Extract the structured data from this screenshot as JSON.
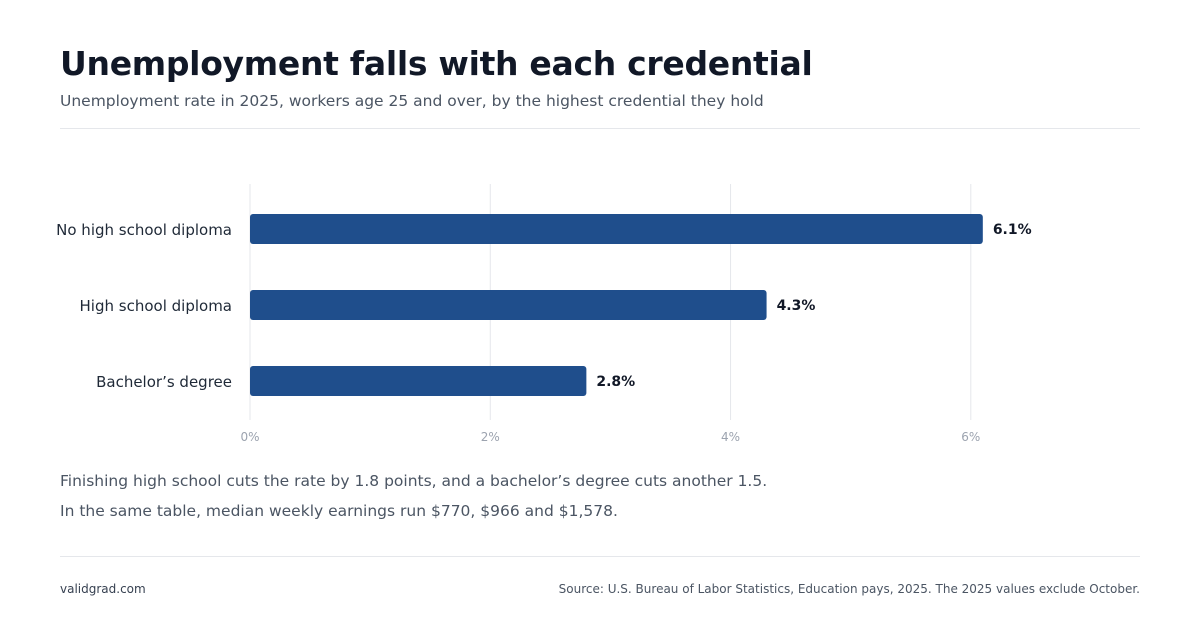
{
  "header": {
    "title": "Unemployment falls with each credential",
    "subtitle": "Unemployment rate in 2025, workers age 25 and over, by the highest credential they hold"
  },
  "chart_data": {
    "type": "bar",
    "orientation": "horizontal",
    "categories": [
      "No high school diploma",
      "High school diploma",
      "Bachelor’s degree"
    ],
    "values": [
      6.1,
      4.3,
      2.8
    ],
    "value_labels": [
      "6.1%",
      "4.3%",
      "2.8%"
    ],
    "x_ticks": [
      0,
      2,
      4,
      6
    ],
    "x_tick_labels": [
      "0%",
      "2%",
      "4%",
      "6%"
    ],
    "xlim": [
      0,
      7.5
    ],
    "grid": "vertical",
    "bar_color": "#1f4e8c"
  },
  "notes": [
    "Finishing high school cuts the rate by 1.8 points, and a bachelor’s degree cuts another 1.5.",
    "In the same table, median weekly earnings run $770, $966 and $1,578."
  ],
  "footer": {
    "site": "validgrad.com",
    "source": "Source: U.S. Bureau of Labor Statistics, Education pays, 2025. The 2025 values exclude October."
  }
}
